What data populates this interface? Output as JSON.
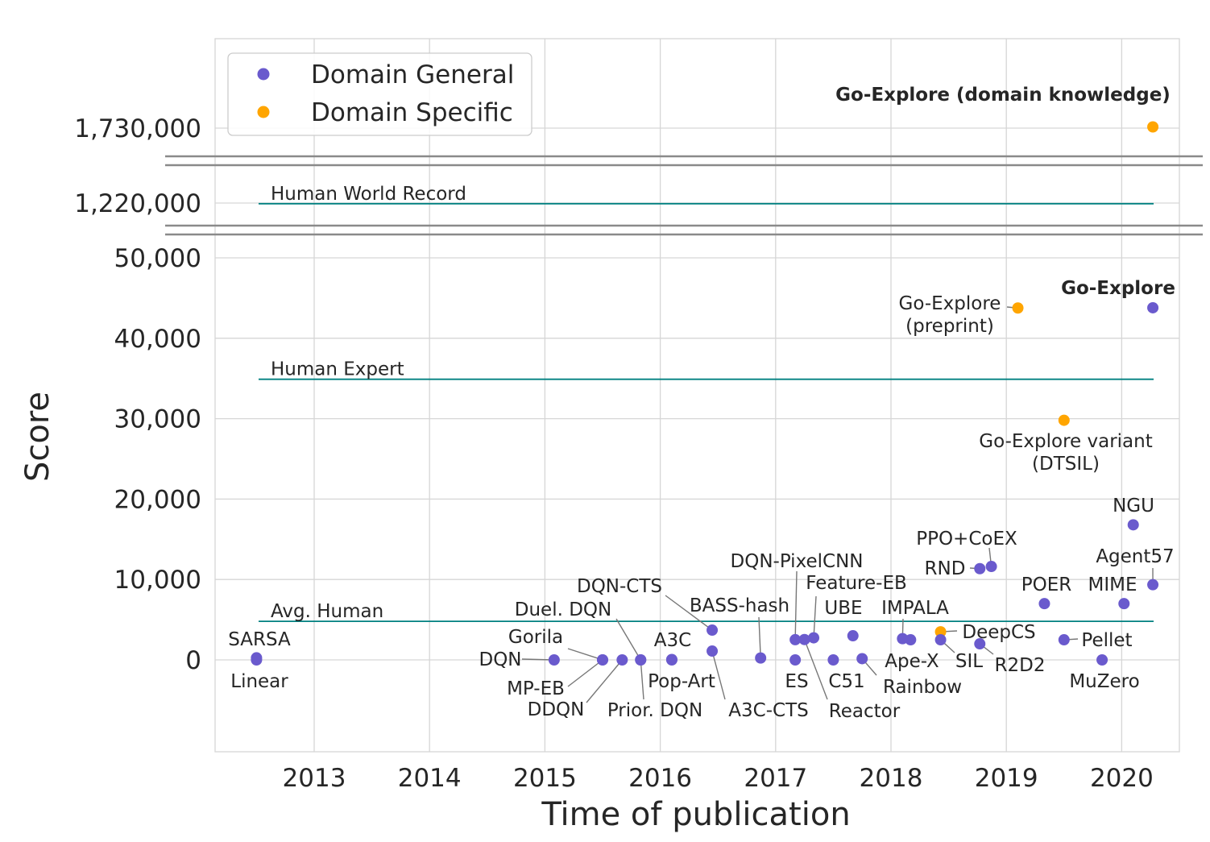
{
  "chart_data": {
    "type": "scatter",
    "xlabel": "Time of publication",
    "ylabel": "Score",
    "x_ticks": [
      "2013",
      "2014",
      "2015",
      "2016",
      "2017",
      "2018",
      "2019",
      "2020"
    ],
    "x_range": [
      2012.13,
      2020.5
    ],
    "y_scale": "broken axis (three segments)",
    "y_ticks": [
      {
        "value": 0,
        "label": "0"
      },
      {
        "value": 10000,
        "label": "10,000"
      },
      {
        "value": 20000,
        "label": "20,000"
      },
      {
        "value": 30000,
        "label": "30,000"
      },
      {
        "value": 40000,
        "label": "40,000"
      },
      {
        "value": 50000,
        "label": "50,000"
      },
      {
        "value": 1220000,
        "label": "1,220,000"
      },
      {
        "value": 1730000,
        "label": "1,730,000"
      }
    ],
    "grid": true,
    "legend": {
      "placement": "top-left",
      "entries": [
        {
          "name": "Domain General",
          "color": "#6a5acd"
        },
        {
          "name": "Domain Specific",
          "color": "#ffa500"
        }
      ]
    },
    "reference_lines": [
      {
        "label": "Human World Record",
        "value": 1219200,
        "color": "#008080"
      },
      {
        "label": "Human Expert",
        "value": 34900,
        "color": "#008080"
      },
      {
        "label": "Avg. Human",
        "value": 4800,
        "color": "#008080"
      }
    ],
    "points": [
      {
        "label": "SARSA",
        "x": 2012.5,
        "y": 259,
        "group": "general"
      },
      {
        "label": "Linear",
        "x": 2012.5,
        "y": 0,
        "group": "general"
      },
      {
        "label": "DQN",
        "x": 2015.08,
        "y": 0,
        "group": "general"
      },
      {
        "label": "Gorila",
        "x": 2015.5,
        "y": 4,
        "group": "general"
      },
      {
        "label": "MP-EB",
        "x": 2015.5,
        "y": 0,
        "group": "general"
      },
      {
        "label": "DDQN",
        "x": 2015.67,
        "y": 0,
        "group": "general"
      },
      {
        "label": "Duel. DQN",
        "x": 2015.83,
        "y": 0,
        "group": "general"
      },
      {
        "label": "Prior. DQN",
        "x": 2015.83,
        "y": 0,
        "group": "general"
      },
      {
        "label": "A3C",
        "x": 2016.1,
        "y": 53,
        "group": "general"
      },
      {
        "label": "Pop-Art",
        "x": 2016.1,
        "y": 0,
        "group": "general"
      },
      {
        "label": "DQN-CTS",
        "x": 2016.45,
        "y": 3705,
        "group": "general"
      },
      {
        "label": "A3C-CTS",
        "x": 2016.45,
        "y": 1100,
        "group": "general"
      },
      {
        "label": "BASS-hash",
        "x": 2016.87,
        "y": 238,
        "group": "general"
      },
      {
        "label": "DQN-PixelCNN",
        "x": 2017.17,
        "y": 2514,
        "group": "general"
      },
      {
        "label": "ES",
        "x": 2017.17,
        "y": 0,
        "group": "general"
      },
      {
        "label": "Reactor",
        "x": 2017.25,
        "y": 2535,
        "group": "general"
      },
      {
        "label": "Feature-EB",
        "x": 2017.33,
        "y": 2745,
        "group": "general"
      },
      {
        "label": "C51",
        "x": 2017.5,
        "y": 0,
        "group": "general"
      },
      {
        "label": "UBE",
        "x": 2017.67,
        "y": 3000,
        "group": "general"
      },
      {
        "label": "Rainbow",
        "x": 2017.75,
        "y": 154,
        "group": "general"
      },
      {
        "label": "IMPALA",
        "x": 2018.1,
        "y": 2643,
        "group": "general"
      },
      {
        "label": "Ape-X",
        "x": 2018.17,
        "y": 2500,
        "group": "general"
      },
      {
        "label": "DeepCS",
        "x": 2018.43,
        "y": 3500,
        "group": "specific"
      },
      {
        "label": "SIL",
        "x": 2018.43,
        "y": 2500,
        "group": "general"
      },
      {
        "label": "R2D2",
        "x": 2018.77,
        "y": 2000,
        "group": "general"
      },
      {
        "label": "RND",
        "x": 2018.77,
        "y": 11347,
        "group": "general"
      },
      {
        "label": "PPO+CoEX",
        "x": 2018.87,
        "y": 11618,
        "group": "general"
      },
      {
        "label": "Go-Explore (preprint)",
        "x": 2019.1,
        "y": 43763,
        "group": "specific"
      },
      {
        "label": "POER",
        "x": 2019.33,
        "y": 7000,
        "group": "general"
      },
      {
        "label": "Go-Explore variant (DTSIL)",
        "x": 2019.5,
        "y": 29800,
        "group": "specific"
      },
      {
        "label": "Pellet",
        "x": 2019.5,
        "y": 2500,
        "group": "general"
      },
      {
        "label": "MuZero",
        "x": 2019.83,
        "y": 0,
        "group": "general"
      },
      {
        "label": "MIME",
        "x": 2020.02,
        "y": 7000,
        "group": "general"
      },
      {
        "label": "NGU",
        "x": 2020.1,
        "y": 16800,
        "group": "general"
      },
      {
        "label": "Agent57",
        "x": 2020.27,
        "y": 9352,
        "group": "general"
      },
      {
        "label": "Go-Explore",
        "x": 2020.27,
        "y": 43791,
        "group": "general"
      },
      {
        "label": "Go-Explore (domain knowledge)",
        "x": 2020.27,
        "y": 1731500,
        "group": "specific"
      }
    ]
  }
}
